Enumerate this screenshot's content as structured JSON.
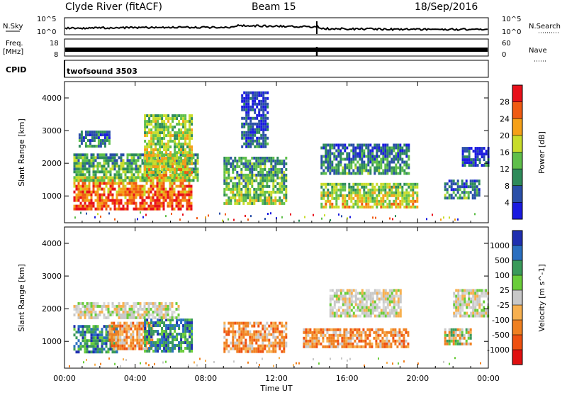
{
  "header": {
    "title_left": "Clyde River (fitACF)",
    "title_center": "Beam 15",
    "title_right": "18/Sep/2016"
  },
  "strip_panels": {
    "nsky_label": "N.Sky",
    "nsky_ticks": [
      "10^5",
      "10^0"
    ],
    "nsearch_label": "N.Search",
    "nsearch_ticks": [
      "10^5",
      "10^0"
    ],
    "freq_label_line1": "Freq.",
    "freq_label_line2": "[MHz]",
    "freq_ticks": [
      "18",
      "8"
    ],
    "nave_label": "Nave",
    "nave_ticks": [
      "60",
      "0"
    ],
    "cpid_label": "CPID",
    "cpid_value": "twofsound 3503"
  },
  "chart_data": [
    {
      "type": "heatmap",
      "title": "",
      "xlabel": "Time UT",
      "ylabel": "Slant Range [km]",
      "x_ticks": [
        "00:00",
        "04:00",
        "08:00",
        "12:00",
        "16:00",
        "20:00",
        "00:00"
      ],
      "xlim_hours": [
        0,
        24
      ],
      "y_ticks": [
        1000,
        2000,
        3000,
        4000
      ],
      "ylim_km": [
        180,
        4500
      ],
      "colorbar": {
        "label": "Power [dB]",
        "ticks": [
          "28",
          "24",
          "20",
          "16",
          "12",
          "8",
          "4"
        ],
        "colors": [
          "#e8101a",
          "#f05a12",
          "#f5a018",
          "#c8dc2a",
          "#5fbf4a",
          "#2e8b5a",
          "#2a4fa8",
          "#1a1ae0"
        ]
      },
      "echo_regions": [
        {
          "start": 0.5,
          "end": 7.2,
          "range_low": 600,
          "range_high": 1600,
          "level": 7
        },
        {
          "start": 0.5,
          "end": 7.5,
          "range_low": 1500,
          "range_high": 2300,
          "level": 4
        },
        {
          "start": 0.8,
          "end": 2.5,
          "range_low": 2500,
          "range_high": 3000,
          "level": 3
        },
        {
          "start": 4.5,
          "end": 7.2,
          "range_low": 1600,
          "range_high": 3500,
          "level": 5
        },
        {
          "start": 9.0,
          "end": 12.5,
          "range_low": 800,
          "range_high": 2200,
          "level": 4
        },
        {
          "start": 10.0,
          "end": 11.5,
          "range_low": 2500,
          "range_high": 4200,
          "level": 2
        },
        {
          "start": 14.5,
          "end": 20.0,
          "range_low": 700,
          "range_high": 1400,
          "level": 5
        },
        {
          "start": 14.5,
          "end": 19.5,
          "range_low": 1700,
          "range_high": 2600,
          "level": 3
        },
        {
          "start": 21.5,
          "end": 23.5,
          "range_low": 900,
          "range_high": 1500,
          "level": 3
        },
        {
          "start": 22.5,
          "end": 24.0,
          "range_low": 1900,
          "range_high": 2500,
          "level": 2
        }
      ]
    },
    {
      "type": "heatmap",
      "title": "",
      "xlabel": "Time UT",
      "ylabel": "Slant Range [km]",
      "x_ticks": [
        "00:00",
        "04:00",
        "08:00",
        "12:00",
        "16:00",
        "20:00",
        "00:00"
      ],
      "xlim_hours": [
        0,
        24
      ],
      "y_ticks": [
        1000,
        2000,
        3000,
        4000
      ],
      "ylim_km": [
        180,
        4500
      ],
      "colorbar": {
        "label": "Velocity [m s^-1]",
        "ticks": [
          "1000",
          "500",
          "100",
          "25",
          "-25",
          "-100",
          "-500",
          "-1000"
        ],
        "colors": [
          "#1f2fb0",
          "#2a6fc0",
          "#3a9a5a",
          "#6acd3a",
          "#c8c8c8",
          "#f7b050",
          "#f08020",
          "#ee5010",
          "#e01010"
        ]
      },
      "echo_regions": [
        {
          "start": 0.5,
          "end": 3.0,
          "range_low": 700,
          "range_high": 1500,
          "class": "toward"
        },
        {
          "start": 2.5,
          "end": 5.0,
          "range_low": 800,
          "range_high": 1600,
          "class": "away"
        },
        {
          "start": 4.5,
          "end": 7.2,
          "range_low": 700,
          "range_high": 1700,
          "class": "toward"
        },
        {
          "start": 0.5,
          "end": 6.5,
          "range_low": 1700,
          "range_high": 2200,
          "class": "slow"
        },
        {
          "start": 9.0,
          "end": 12.5,
          "range_low": 700,
          "range_high": 1600,
          "class": "away"
        },
        {
          "start": 13.5,
          "end": 19.5,
          "range_low": 800,
          "range_high": 1400,
          "class": "away"
        },
        {
          "start": 15.0,
          "end": 19.0,
          "range_low": 1800,
          "range_high": 2600,
          "class": "slow"
        },
        {
          "start": 21.5,
          "end": 23.0,
          "range_low": 900,
          "range_high": 1400,
          "class": "mixed"
        },
        {
          "start": 22.0,
          "end": 24.0,
          "range_low": 1800,
          "range_high": 2600,
          "class": "slow"
        }
      ]
    }
  ]
}
